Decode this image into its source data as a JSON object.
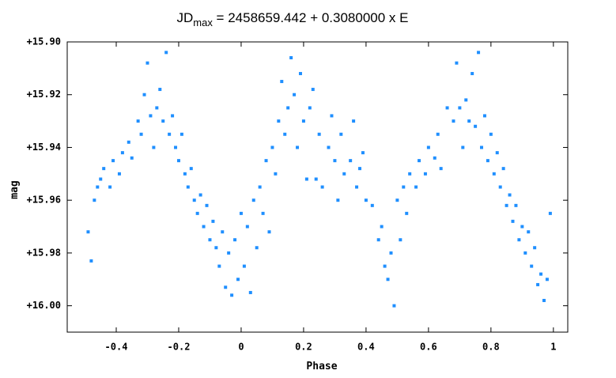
{
  "chart_data": {
    "type": "scatter",
    "title": [
      "JD",
      "max",
      " = 2458659.442 + 0.3080000 x E"
    ],
    "xlabel": "Phase",
    "ylabel": "mag",
    "xlim": [
      -0.557,
      1.046
    ],
    "ylim": [
      16.01,
      15.9
    ],
    "xticks": [
      -0.4,
      -0.2,
      0,
      0.2,
      0.4,
      0.6,
      0.8,
      1
    ],
    "yticks": [
      {
        "value": 15.9,
        "label": "+15.90"
      },
      {
        "value": 15.92,
        "label": "+15.92"
      },
      {
        "value": 15.94,
        "label": "+15.94"
      },
      {
        "value": 15.96,
        "label": "+15.96"
      },
      {
        "value": 15.98,
        "label": "+15.98"
      },
      {
        "value": 16.0,
        "label": "+16.00"
      }
    ],
    "color": "#1f8fff",
    "x": [
      -0.49,
      -0.48,
      -0.47,
      -0.46,
      -0.45,
      -0.44,
      -0.42,
      -0.41,
      -0.39,
      -0.38,
      -0.36,
      -0.35,
      -0.33,
      -0.32,
      -0.31,
      -0.3,
      -0.29,
      -0.28,
      -0.27,
      -0.26,
      -0.25,
      -0.24,
      -0.23,
      -0.22,
      -0.21,
      -0.2,
      -0.19,
      -0.18,
      -0.17,
      -0.16,
      -0.15,
      -0.14,
      -0.13,
      -0.12,
      -0.11,
      -0.1,
      -0.09,
      -0.08,
      -0.07,
      -0.06,
      -0.05,
      -0.04,
      -0.03,
      -0.02,
      -0.01,
      0.0,
      0.01,
      0.02,
      0.03,
      0.04,
      0.05,
      0.06,
      0.07,
      0.08,
      0.09,
      0.1,
      0.11,
      0.12,
      0.13,
      0.14,
      0.15,
      0.16,
      0.17,
      0.18,
      0.19,
      0.2,
      0.21,
      0.22,
      0.23,
      0.24,
      0.25,
      0.26,
      0.28,
      0.29,
      0.3,
      0.31,
      0.32,
      0.33,
      0.35,
      0.36,
      0.37,
      0.38,
      0.39,
      0.4,
      0.42,
      0.44,
      0.45,
      0.46,
      0.47,
      0.48,
      0.49,
      0.5,
      0.51,
      0.52,
      0.53,
      0.54,
      0.56,
      0.57,
      0.59,
      0.6,
      0.62,
      0.63,
      0.64,
      0.66,
      0.68,
      0.69,
      0.7,
      0.71,
      0.72,
      0.73,
      0.74,
      0.75,
      0.76,
      0.77,
      0.78,
      0.79,
      0.8,
      0.81,
      0.82,
      0.83,
      0.84,
      0.85,
      0.86,
      0.87,
      0.88,
      0.89,
      0.9,
      0.91,
      0.92,
      0.93,
      0.94,
      0.95,
      0.96,
      0.97,
      0.98,
      0.99
    ],
    "values": [
      15.972,
      15.983,
      15.96,
      15.955,
      15.952,
      15.948,
      15.955,
      15.945,
      15.95,
      15.942,
      15.938,
      15.944,
      15.93,
      15.935,
      15.92,
      15.908,
      15.928,
      15.94,
      15.925,
      15.918,
      15.93,
      15.904,
      15.935,
      15.928,
      15.94,
      15.945,
      15.935,
      15.95,
      15.955,
      15.948,
      15.96,
      15.965,
      15.958,
      15.97,
      15.962,
      15.975,
      15.968,
      15.978,
      15.985,
      15.972,
      15.993,
      15.98,
      15.996,
      15.975,
      15.99,
      15.965,
      15.985,
      15.97,
      15.995,
      15.96,
      15.978,
      15.955,
      15.965,
      15.945,
      15.972,
      15.94,
      15.95,
      15.93,
      15.915,
      15.935,
      15.925,
      15.906,
      15.92,
      15.94,
      15.912,
      15.93,
      15.952,
      15.925,
      15.918,
      15.952,
      15.935,
      15.955,
      15.94,
      15.928,
      15.945,
      15.96,
      15.935,
      15.95,
      15.945,
      15.93,
      15.955,
      15.948,
      15.942,
      15.96,
      15.962,
      15.975,
      15.97,
      15.985,
      15.99,
      15.98,
      16.0,
      15.96,
      15.975,
      15.955,
      15.965,
      15.95,
      15.955,
      15.945,
      15.95,
      15.94,
      15.944,
      15.935,
      15.948,
      15.925,
      15.93,
      15.908,
      15.925,
      15.94,
      15.922,
      15.93,
      15.912,
      15.932,
      15.904,
      15.94,
      15.928,
      15.945,
      15.935,
      15.95,
      15.942,
      15.955,
      15.948,
      15.962,
      15.958,
      15.968,
      15.962,
      15.975,
      15.97,
      15.98,
      15.972,
      15.985,
      15.978,
      15.992,
      15.988,
      15.998,
      15.99,
      15.965
    ]
  }
}
